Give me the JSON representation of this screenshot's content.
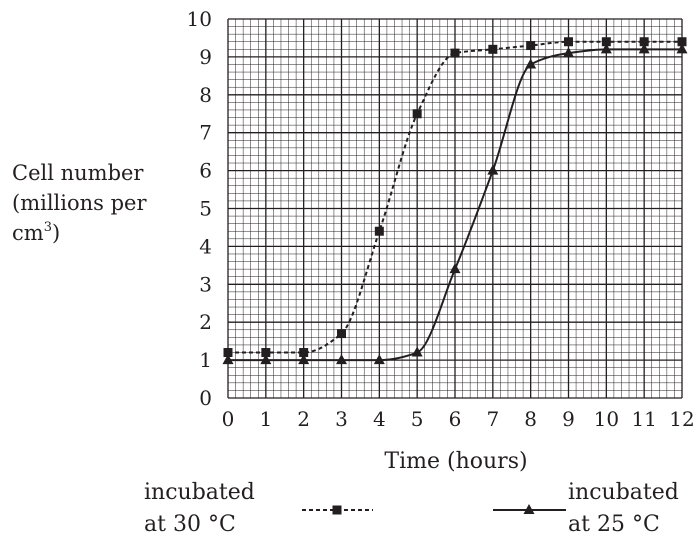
{
  "chart_data": {
    "type": "line",
    "xlabel": "Time (hours)",
    "ylabel": [
      "Cell number",
      "(millions per",
      "cm",
      "3",
      ")"
    ],
    "xlim": [
      0,
      12
    ],
    "ylim": [
      0,
      10
    ],
    "x_ticks": [
      "0",
      "1",
      "2",
      "3",
      "4",
      "5",
      "6",
      "7",
      "8",
      "9",
      "10",
      "11",
      "12"
    ],
    "y_ticks": [
      "0",
      "1",
      "2",
      "3",
      "4",
      "5",
      "6",
      "7",
      "8",
      "9",
      "10"
    ],
    "grid": true,
    "legend_position": "bottom",
    "series": [
      {
        "name_line1": "incubated",
        "name_line2": "at 30 °C",
        "style": "dashed",
        "marker": "square",
        "x": [
          0,
          1,
          2,
          3,
          4,
          5,
          6,
          7,
          8,
          9,
          10,
          11,
          12
        ],
        "y": [
          1.2,
          1.2,
          1.2,
          1.7,
          4.4,
          7.5,
          9.1,
          9.2,
          9.3,
          9.4,
          9.4,
          9.4,
          9.4
        ]
      },
      {
        "name_line1": "incubated",
        "name_line2": "at 25 °C",
        "style": "solid",
        "marker": "triangle",
        "x": [
          0,
          1,
          2,
          3,
          4,
          5,
          6,
          7,
          8,
          9,
          10,
          11,
          12
        ],
        "y": [
          1.0,
          1.0,
          1.0,
          1.0,
          1.0,
          1.2,
          3.4,
          6.0,
          8.8,
          9.1,
          9.2,
          9.2,
          9.2
        ]
      }
    ]
  }
}
